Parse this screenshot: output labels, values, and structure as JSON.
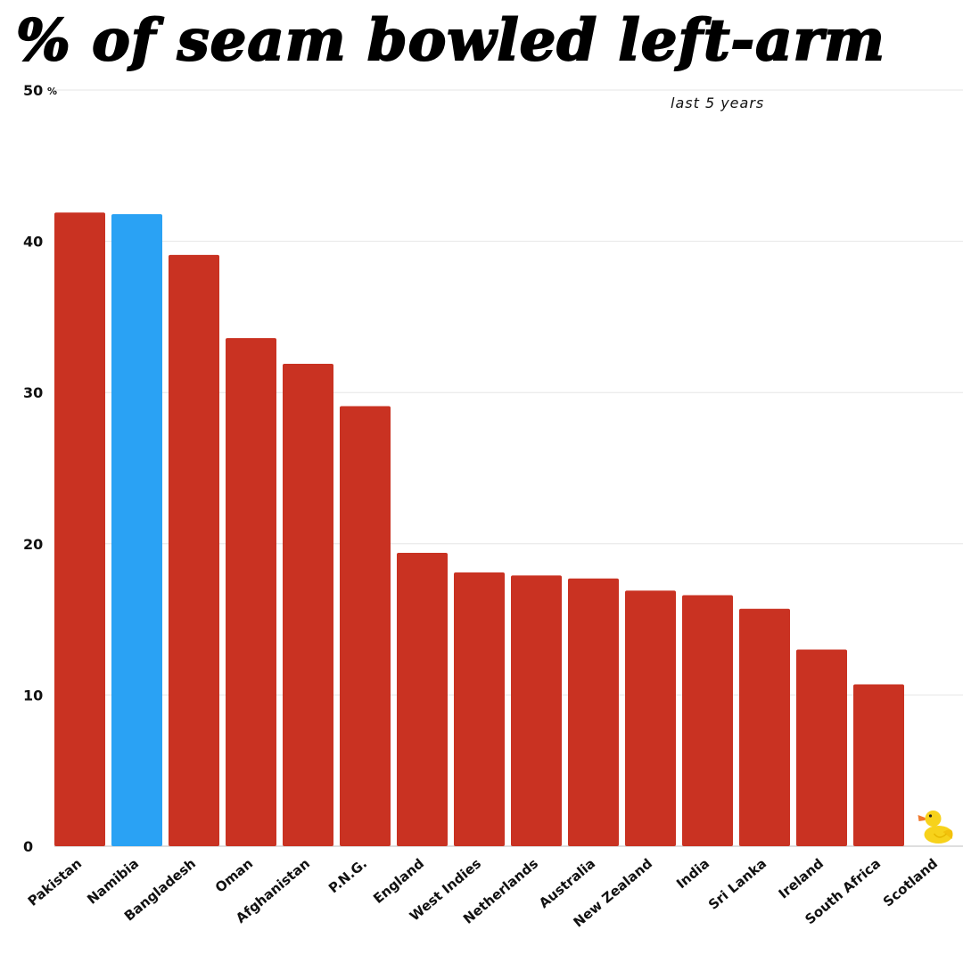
{
  "chart_data": {
    "type": "bar",
    "title": "% of seam bowled left-arm",
    "subtitle": "last 5 years",
    "xlabel": "",
    "ylabel": "",
    "y_unit": "%",
    "ylim": [
      0,
      50
    ],
    "yticks": [
      0,
      10,
      20,
      30,
      40,
      50
    ],
    "grid": true,
    "categories": [
      "Pakistan",
      "Namibia",
      "Bangladesh",
      "Oman",
      "Afghanistan",
      "P.N.G.",
      "England",
      "West Indies",
      "Netherlands",
      "Australia",
      "New Zealand",
      "India",
      "Sri Lanka",
      "Ireland",
      "South Africa",
      "Scotland"
    ],
    "values": [
      41.9,
      41.8,
      39.1,
      33.6,
      31.9,
      29.1,
      19.4,
      18.1,
      17.9,
      17.7,
      16.9,
      16.6,
      15.7,
      13.0,
      10.7,
      0
    ],
    "colors": {
      "default": "#c93222",
      "highlight": "#2aa2f4",
      "highlight_category": "Namibia"
    },
    "annotation": {
      "category": "Scotland",
      "icon": "rubber-duck-icon"
    }
  }
}
